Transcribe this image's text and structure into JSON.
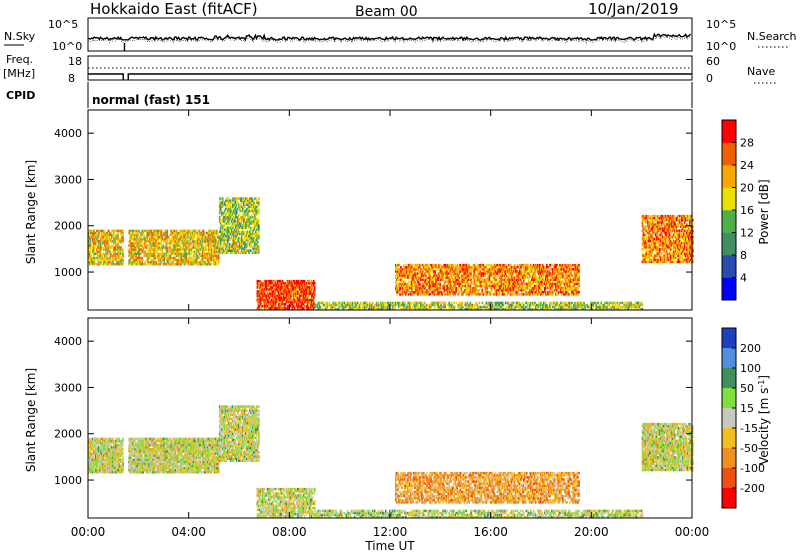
{
  "header": {
    "station": "Hokkaido East (fitACF)",
    "beam": "Beam 00",
    "date": "10/Jan/2019"
  },
  "top_panels": {
    "nsky_label": "N.Sky",
    "nsearch_label": "N.Search",
    "noise_ticks": [
      "10^5",
      "10^0"
    ],
    "freq_label": "Freq.",
    "freq_unit": "[MHz]",
    "freq_ticks": [
      "18",
      "8"
    ],
    "nave_label": "Nave",
    "nave_ticks": [
      "60",
      "0"
    ],
    "cpid_label": "CPID",
    "cpid_value": "normal (fast) 151"
  },
  "axes": {
    "ylabel": "Slant Range [km]",
    "xlabel": "Time UT",
    "x_ticks": [
      "00:00",
      "04:00",
      "08:00",
      "12:00",
      "16:00",
      "20:00",
      "00:00"
    ],
    "y_ticks": [
      "1000",
      "2000",
      "3000",
      "4000"
    ]
  },
  "colorbars": {
    "power": {
      "label": "Power [dB]",
      "ticks": [
        "4",
        "8",
        "12",
        "16",
        "20",
        "24",
        "28"
      ],
      "colors": [
        "#0000ff",
        "#2a4cb0",
        "#3f8f63",
        "#4fb04a",
        "#e9e000",
        "#f7a800",
        "#f06000",
        "#ff0000"
      ]
    },
    "velocity": {
      "label": "Velocity [m s",
      "label_sup": "-1",
      "label_end": "]",
      "ticks": [
        "200",
        "100",
        "50",
        "15",
        "-15",
        "-50",
        "-100",
        "-200"
      ],
      "colors": [
        "#1f3fbf",
        "#4f8fe0",
        "#3f8f5f",
        "#7fdf3f",
        "#c8c8c0",
        "#f0c020",
        "#f09020",
        "#f05010",
        "#ff0000"
      ]
    }
  },
  "chart_data": [
    {
      "type": "heatmap",
      "name": "power",
      "x_unit": "hours UT",
      "y_unit": "km",
      "xlim": [
        0,
        24
      ],
      "ylim": [
        180,
        4500
      ],
      "echo_regions": [
        {
          "t0": 0.0,
          "t1": 5.2,
          "r0": 1150,
          "r1": 1900,
          "level": 20,
          "noise": 0.3
        },
        {
          "t0": 5.2,
          "t1": 6.8,
          "r0": 1400,
          "r1": 2600,
          "level": 16,
          "noise": 0.35
        },
        {
          "t0": 6.7,
          "t1": 9.0,
          "r0": 200,
          "r1": 800,
          "level": 28,
          "noise": 0.25
        },
        {
          "t0": 9.0,
          "t1": 22.0,
          "r0": 180,
          "r1": 320,
          "level": 16,
          "noise": 0.4
        },
        {
          "t0": 12.2,
          "t1": 19.5,
          "r0": 500,
          "r1": 1150,
          "level": 24,
          "noise": 0.3
        },
        {
          "t0": 22.0,
          "t1": 24.0,
          "r0": 1200,
          "r1": 2200,
          "level": 24,
          "noise": 0.3
        }
      ]
    },
    {
      "type": "heatmap",
      "name": "velocity",
      "x_unit": "hours UT",
      "y_unit": "km",
      "xlim": [
        0,
        24
      ],
      "ylim": [
        180,
        4500
      ],
      "echo_regions": [
        {
          "t0": 0.0,
          "t1": 5.2,
          "r0": 1150,
          "r1": 1900,
          "level": 0,
          "noise": 0.15
        },
        {
          "t0": 5.2,
          "t1": 6.8,
          "r0": 1400,
          "r1": 2600,
          "level": 0,
          "noise": 0.2
        },
        {
          "t0": 6.7,
          "t1": 9.0,
          "r0": 200,
          "r1": 800,
          "level": 0,
          "noise": 0.3
        },
        {
          "t0": 9.0,
          "t1": 22.0,
          "r0": 180,
          "r1": 320,
          "level": 15,
          "noise": 0.4
        },
        {
          "t0": 12.2,
          "t1": 19.5,
          "r0": 500,
          "r1": 1150,
          "level": -60,
          "noise": 0.35
        },
        {
          "t0": 22.0,
          "t1": 24.0,
          "r0": 1200,
          "r1": 2200,
          "level": 0,
          "noise": 0.15
        }
      ]
    }
  ]
}
